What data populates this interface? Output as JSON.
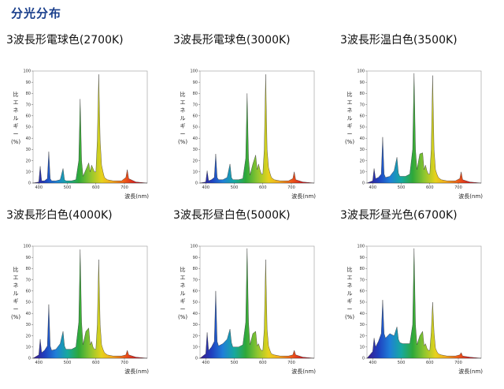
{
  "page": {
    "title": "分光分布"
  },
  "axis": {
    "ylabel": [
      "比",
      "エ",
      "ネ",
      "ル",
      "ギ",
      "ー",
      "(%)"
    ],
    "xlabel": "波長(nm)",
    "yticks": [
      "0",
      "10",
      "20",
      "30",
      "40",
      "50",
      "60",
      "70",
      "80",
      "90",
      "100"
    ],
    "xticks": [
      "400",
      "500",
      "600",
      "700"
    ]
  },
  "colors": {
    "title": "#1a3f8c",
    "spectrum": [
      "#3b1a8c",
      "#1f3fbf",
      "#1f7fd8",
      "#16a8a0",
      "#2ea83a",
      "#8cc530",
      "#e6d21c",
      "#f5a51c",
      "#ef5a18",
      "#d21c20",
      "#b01020"
    ]
  },
  "chart_data": [
    {
      "type": "area",
      "title": "3波長形電球色(2700K)",
      "xlim": [
        380,
        780
      ],
      "ylim": [
        0,
        100
      ],
      "xlabel": "波長(nm)",
      "ylabel": "比エネルギー(%)",
      "x": [
        380,
        400,
        405,
        410,
        420,
        430,
        435,
        440,
        445,
        460,
        475,
        485,
        490,
        495,
        505,
        515,
        530,
        540,
        545,
        550,
        555,
        565,
        575,
        580,
        585,
        590,
        595,
        600,
        605,
        610,
        615,
        620,
        625,
        630,
        640,
        660,
        690,
        705,
        710,
        715,
        740,
        780
      ],
      "y": [
        0,
        1,
        15,
        2,
        2,
        4,
        28,
        4,
        2,
        2,
        3,
        13,
        3,
        2,
        2,
        2,
        3,
        20,
        75,
        20,
        6,
        12,
        18,
        10,
        16,
        13,
        10,
        10,
        38,
        97,
        38,
        16,
        10,
        5,
        3,
        2,
        2,
        5,
        12,
        4,
        1,
        0
      ]
    },
    {
      "type": "area",
      "title": "3波長形電球色(3000K)",
      "xlim": [
        380,
        780
      ],
      "ylim": [
        0,
        100
      ],
      "xlabel": "波長(nm)",
      "ylabel": "比エネルギー(%)",
      "x": [
        380,
        400,
        405,
        410,
        420,
        430,
        435,
        440,
        445,
        460,
        475,
        485,
        490,
        495,
        505,
        515,
        530,
        540,
        545,
        550,
        555,
        565,
        575,
        580,
        585,
        590,
        595,
        600,
        605,
        610,
        615,
        620,
        625,
        630,
        640,
        660,
        690,
        705,
        710,
        715,
        740,
        780
      ],
      "y": [
        0,
        1,
        11,
        2,
        3,
        5,
        26,
        5,
        3,
        3,
        5,
        17,
        5,
        3,
        3,
        3,
        4,
        22,
        80,
        22,
        7,
        17,
        25,
        12,
        17,
        12,
        8,
        8,
        30,
        97,
        30,
        14,
        9,
        5,
        3,
        2,
        2,
        4,
        10,
        3,
        1,
        0
      ]
    },
    {
      "type": "area",
      "title": "3波長形温白色(3500K)",
      "xlim": [
        380,
        780
      ],
      "ylim": [
        0,
        100
      ],
      "xlabel": "波長(nm)",
      "ylabel": "比エネルギー(%)",
      "x": [
        380,
        400,
        405,
        410,
        420,
        430,
        435,
        440,
        445,
        460,
        475,
        485,
        490,
        495,
        505,
        515,
        530,
        540,
        545,
        550,
        555,
        565,
        575,
        580,
        585,
        590,
        595,
        600,
        605,
        610,
        615,
        620,
        625,
        630,
        640,
        660,
        690,
        705,
        710,
        715,
        740,
        780
      ],
      "y": [
        0,
        2,
        13,
        4,
        5,
        8,
        41,
        8,
        5,
        6,
        11,
        23,
        9,
        6,
        6,
        6,
        8,
        30,
        98,
        30,
        12,
        26,
        27,
        12,
        16,
        11,
        8,
        8,
        30,
        96,
        30,
        12,
        8,
        5,
        3,
        2,
        2,
        4,
        10,
        3,
        1,
        0
      ]
    },
    {
      "type": "area",
      "title": "3波長形白色(4000K)",
      "xlim": [
        380,
        780
      ],
      "ylim": [
        0,
        100
      ],
      "xlabel": "波長(nm)",
      "ylabel": "比エネルギー(%)",
      "x": [
        380,
        400,
        405,
        410,
        420,
        430,
        435,
        440,
        445,
        460,
        475,
        485,
        490,
        495,
        505,
        515,
        530,
        540,
        545,
        550,
        555,
        565,
        575,
        580,
        585,
        590,
        595,
        600,
        605,
        610,
        615,
        620,
        625,
        630,
        640,
        660,
        690,
        705,
        710,
        715,
        740,
        780
      ],
      "y": [
        0,
        3,
        17,
        5,
        7,
        11,
        48,
        11,
        7,
        8,
        13,
        24,
        11,
        8,
        8,
        8,
        10,
        32,
        97,
        32,
        12,
        24,
        27,
        12,
        15,
        10,
        8,
        8,
        30,
        88,
        30,
        12,
        8,
        5,
        3,
        2,
        2,
        3,
        7,
        3,
        1,
        0
      ]
    },
    {
      "type": "area",
      "title": "3波長形昼白色(5000K)",
      "xlim": [
        380,
        780
      ],
      "ylim": [
        0,
        100
      ],
      "xlabel": "波長(nm)",
      "ylabel": "比エネルギー(%)",
      "x": [
        380,
        400,
        405,
        410,
        420,
        430,
        435,
        440,
        445,
        460,
        475,
        485,
        490,
        495,
        505,
        515,
        530,
        540,
        545,
        550,
        555,
        565,
        575,
        580,
        585,
        590,
        595,
        600,
        605,
        610,
        615,
        620,
        625,
        630,
        640,
        660,
        690,
        705,
        710,
        715,
        740,
        780
      ],
      "y": [
        0,
        4,
        23,
        7,
        10,
        15,
        60,
        15,
        11,
        13,
        17,
        26,
        14,
        10,
        10,
        10,
        12,
        32,
        98,
        32,
        12,
        22,
        24,
        11,
        13,
        9,
        7,
        7,
        26,
        88,
        26,
        11,
        7,
        4,
        3,
        2,
        2,
        3,
        7,
        3,
        1,
        0
      ]
    },
    {
      "type": "area",
      "title": "3波長形昼光色(6700K)",
      "xlim": [
        380,
        780
      ],
      "ylim": [
        0,
        100
      ],
      "xlabel": "波長(nm)",
      "ylabel": "比エネルギー(%)",
      "x": [
        380,
        400,
        405,
        410,
        420,
        430,
        435,
        440,
        445,
        460,
        475,
        485,
        490,
        495,
        505,
        515,
        530,
        540,
        545,
        550,
        555,
        565,
        575,
        580,
        585,
        590,
        595,
        600,
        605,
        610,
        615,
        620,
        625,
        630,
        640,
        660,
        690,
        705,
        710,
        715,
        740,
        780
      ],
      "y": [
        0,
        6,
        18,
        10,
        15,
        22,
        52,
        22,
        18,
        22,
        20,
        28,
        17,
        14,
        13,
        13,
        13,
        30,
        98,
        30,
        12,
        20,
        24,
        11,
        13,
        9,
        7,
        7,
        23,
        50,
        23,
        9,
        6,
        4,
        3,
        2,
        2,
        3,
        5,
        2,
        1,
        0
      ]
    }
  ]
}
